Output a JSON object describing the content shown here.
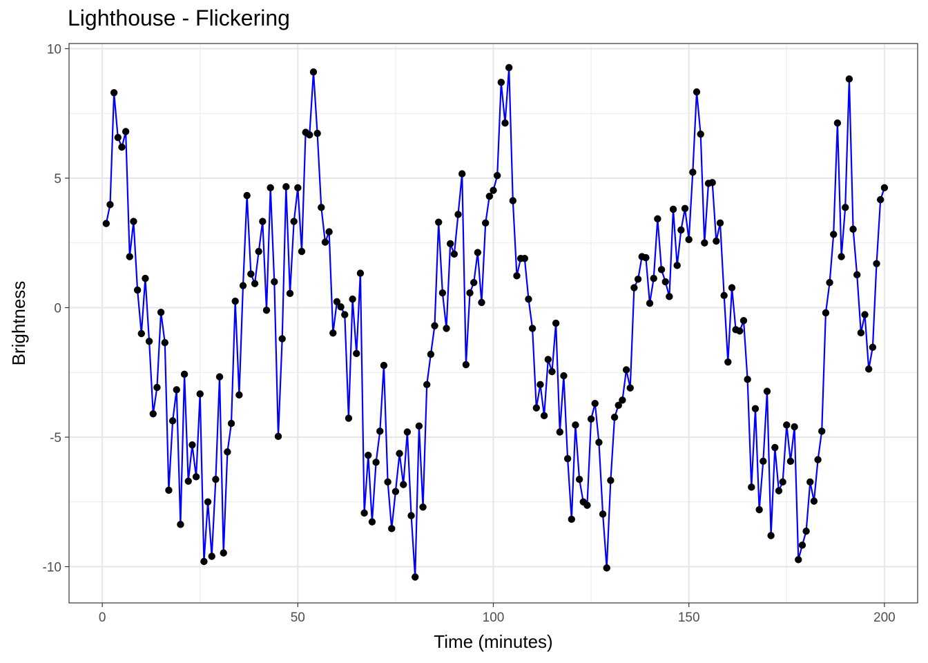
{
  "chart_data": {
    "type": "line",
    "title": "Lighthouse - Flickering",
    "xlabel": "Time (minutes)",
    "ylabel": "Brightness",
    "xlim": [
      -8.5,
      208.5
    ],
    "ylim": [
      -11.4,
      10.2
    ],
    "xticks": [
      0,
      50,
      100,
      150,
      200
    ],
    "xtick_labels": [
      "0",
      "50",
      "100",
      "150",
      "200"
    ],
    "yticks": [
      -10,
      -5,
      0,
      5,
      10
    ],
    "ytick_labels": [
      "-10",
      "-5",
      "0",
      "5",
      "10"
    ],
    "grid": true,
    "legend": "none",
    "line_color": "#0000ff",
    "point_color": "#000000",
    "series": [
      {
        "x": [
          1,
          2,
          3,
          4,
          5,
          6,
          7,
          8,
          9,
          10,
          11,
          12,
          13,
          14,
          15,
          16,
          17,
          18,
          19,
          20,
          21,
          22,
          23,
          24,
          25,
          26,
          27,
          28,
          29,
          30,
          31,
          32,
          33,
          34,
          35,
          36,
          37,
          38,
          39,
          40,
          41,
          42,
          43,
          44,
          45,
          46,
          47,
          48,
          49,
          50,
          51,
          52,
          53,
          54,
          55,
          56,
          57,
          58,
          59,
          60,
          61,
          62,
          63,
          64,
          65,
          66,
          67,
          68,
          69,
          70,
          71,
          72,
          73,
          74,
          75,
          76,
          77,
          78,
          79,
          80,
          81,
          82,
          83,
          84,
          85,
          86,
          87,
          88,
          89,
          90,
          91,
          92,
          93,
          94,
          95,
          96,
          97,
          98,
          99,
          100,
          101,
          102,
          103,
          104,
          105,
          106,
          107,
          108,
          109,
          110,
          111,
          112,
          113,
          114,
          115,
          116,
          117,
          118,
          119,
          120,
          121,
          122,
          123,
          124,
          125,
          126,
          127,
          128,
          129,
          130,
          131,
          132,
          133,
          134,
          135,
          136,
          137,
          138,
          139,
          140,
          141,
          142,
          143,
          144,
          145,
          146,
          147,
          148,
          149,
          150,
          151,
          152,
          153,
          154,
          155,
          156,
          157,
          158,
          159,
          160,
          161,
          162,
          163,
          164,
          165,
          166,
          167,
          168,
          169,
          170,
          171,
          172,
          173,
          174,
          175,
          176,
          177,
          178,
          179,
          180,
          181,
          182,
          183,
          184,
          185,
          186,
          187,
          188,
          189,
          190,
          191,
          192,
          193,
          194,
          195,
          196,
          197,
          198,
          199,
          200
        ],
        "y": [
          3.25,
          3.98,
          8.3,
          6.57,
          6.2,
          6.8,
          1.97,
          3.33,
          0.68,
          -1.0,
          1.13,
          -1.3,
          -4.1,
          -3.08,
          -0.18,
          -1.35,
          -7.05,
          -4.37,
          -3.17,
          -8.37,
          -2.57,
          -6.7,
          -5.3,
          -6.53,
          -3.33,
          -9.8,
          -7.5,
          -9.6,
          -6.63,
          -2.67,
          -9.47,
          -5.57,
          -4.47,
          0.25,
          -3.37,
          0.85,
          4.33,
          1.3,
          0.93,
          2.17,
          3.33,
          -0.1,
          4.63,
          1.0,
          -4.97,
          -1.2,
          4.67,
          0.55,
          3.33,
          4.63,
          2.17,
          6.77,
          6.67,
          9.1,
          6.73,
          3.87,
          2.53,
          2.93,
          -0.98,
          0.23,
          0.03,
          -0.27,
          -4.27,
          0.33,
          -1.77,
          1.33,
          -7.93,
          -5.7,
          -8.27,
          -5.97,
          -4.77,
          -2.23,
          -6.73,
          -8.53,
          -7.1,
          -5.63,
          -6.83,
          -4.8,
          -8.03,
          -10.4,
          -4.57,
          -7.7,
          -2.97,
          -1.8,
          -0.7,
          3.3,
          0.57,
          -0.8,
          2.47,
          2.07,
          3.6,
          5.17,
          -2.2,
          0.57,
          0.97,
          2.13,
          0.2,
          3.27,
          4.3,
          4.53,
          5.1,
          8.7,
          7.13,
          9.27,
          4.13,
          1.23,
          1.9,
          1.9,
          0.33,
          -0.8,
          -3.87,
          -2.97,
          -4.17,
          -2.0,
          -2.47,
          -0.6,
          -4.8,
          -2.63,
          -5.83,
          -8.17,
          -4.53,
          -6.63,
          -7.5,
          -7.63,
          -4.3,
          -3.7,
          -5.2,
          -7.97,
          -10.05,
          -6.67,
          -4.23,
          -3.77,
          -3.57,
          -2.4,
          -3.1,
          0.77,
          1.1,
          1.97,
          1.93,
          0.17,
          1.13,
          3.43,
          1.47,
          1.0,
          0.43,
          3.8,
          1.63,
          3.0,
          3.83,
          2.63,
          5.23,
          8.33,
          6.7,
          2.5,
          4.8,
          4.83,
          2.57,
          3.27,
          0.47,
          -2.1,
          0.77,
          -0.85,
          -0.9,
          -0.5,
          -2.77,
          -6.93,
          -3.9,
          -7.8,
          -5.93,
          -3.23,
          -8.8,
          -5.4,
          -7.07,
          -6.73,
          -4.53,
          -5.93,
          -4.6,
          -9.73,
          -9.17,
          -8.63,
          -6.73,
          -7.47,
          -5.87,
          -4.77,
          -0.2,
          0.97,
          2.83,
          7.13,
          1.97,
          3.87,
          8.83,
          3.03,
          1.27,
          -0.97,
          -0.27,
          -2.37,
          -1.53,
          1.7,
          4.17,
          4.63
        ]
      }
    ]
  }
}
